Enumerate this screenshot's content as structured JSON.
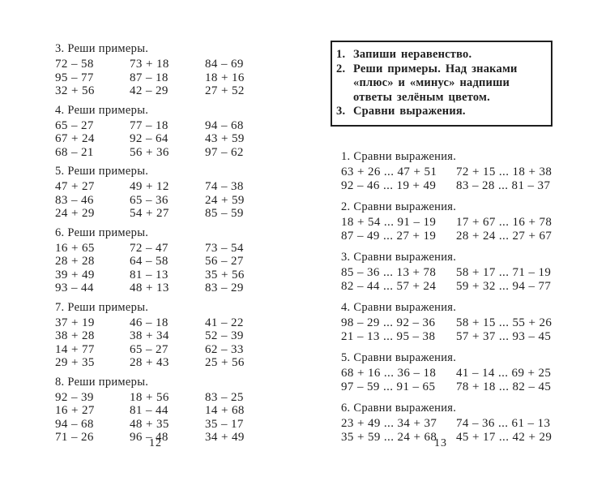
{
  "colors": {
    "background": "#ffffff",
    "text": "#1e1e1e",
    "box_border": "#1e1e1e"
  },
  "left_page": {
    "page_number": "12",
    "exercises": [
      {
        "title": "3. Реши примеры.",
        "rows": [
          [
            "72 – 58",
            "73 + 18",
            "84 – 69"
          ],
          [
            "95 – 77",
            "87 – 18",
            "18 + 16"
          ],
          [
            "32 + 56",
            "42 – 29",
            "27 + 52"
          ]
        ]
      },
      {
        "title": "4. Реши примеры.",
        "rows": [
          [
            "65 – 27",
            "77 – 18",
            "94 – 68"
          ],
          [
            "67 + 24",
            "92 – 64",
            "43 + 59"
          ],
          [
            "68 – 21",
            "56 + 36",
            "97 – 62"
          ]
        ]
      },
      {
        "title": "5. Реши примеры.",
        "rows": [
          [
            "47 + 27",
            "49 + 12",
            "74 – 38"
          ],
          [
            "83 – 46",
            "65 – 36",
            "24 + 59"
          ],
          [
            "24 + 29",
            "54 + 27",
            "85 – 59"
          ]
        ]
      },
      {
        "title": "6. Реши примеры.",
        "rows": [
          [
            "16 + 65",
            "72 – 47",
            "73 – 54"
          ],
          [
            "28 + 28",
            "64 – 58",
            "56 – 27"
          ],
          [
            "39 + 49",
            "81 – 13",
            "35 + 56"
          ],
          [
            "93 – 44",
            "48 + 13",
            "83 – 29"
          ]
        ]
      },
      {
        "title": "7. Реши примеры.",
        "rows": [
          [
            "37 + 19",
            "46 – 18",
            "41 – 22"
          ],
          [
            "38 + 28",
            "38 + 34",
            "52 – 39"
          ],
          [
            "14 + 77",
            "65 – 27",
            "62 – 33"
          ],
          [
            "29 + 35",
            "28 + 43",
            "25 + 56"
          ]
        ]
      },
      {
        "title": "8. Реши примеры.",
        "rows": [
          [
            "92 – 39",
            "18 + 56",
            "83 – 25"
          ],
          [
            "16 + 27",
            "81 – 44",
            "14 + 68"
          ],
          [
            "94 – 68",
            "48 + 35",
            "35 – 17"
          ],
          [
            "71 – 26",
            "96 – 48",
            "34 + 49"
          ]
        ]
      }
    ]
  },
  "right_page": {
    "page_number": "13",
    "instruction_box": {
      "items": [
        {
          "num": "1.",
          "text": "Запиши неравенство."
        },
        {
          "num": "2.",
          "text": "Реши примеры. Над знаками «плюс» и «минус» надпиши ответы зелёным цветом."
        },
        {
          "num": "3.",
          "text": "Сравни выражения."
        }
      ]
    },
    "exercises": [
      {
        "title": "1. Сравни выражения.",
        "rows": [
          [
            "63 + 26 ... 47 + 51",
            "72 + 15 ... 18 + 38"
          ],
          [
            "92 – 46 ... 19 + 49",
            "83 – 28 ... 81 – 37"
          ]
        ]
      },
      {
        "title": "2. Сравни выражения.",
        "rows": [
          [
            "18 + 54 ... 91 – 19",
            "17 + 67 ... 16 + 78"
          ],
          [
            "87 – 49 ... 27 + 19",
            "28 + 24 ... 27 + 67"
          ]
        ]
      },
      {
        "title": "3. Сравни выражения.",
        "rows": [
          [
            "85 – 36 ... 13 + 78",
            "58 + 17 ... 71 – 19"
          ],
          [
            "82 – 44 ... 57 + 24",
            "59 + 32 ... 94 – 77"
          ]
        ]
      },
      {
        "title": "4. Сравни выражения.",
        "rows": [
          [
            "98 – 29 ... 92 – 36",
            "58 + 15 ... 55 + 26"
          ],
          [
            "21 – 13 ... 95 – 38",
            "57 + 37 ... 93 – 45"
          ]
        ]
      },
      {
        "title": "5. Сравни выражения.",
        "rows": [
          [
            "68 + 16 ... 36 – 18",
            "41 – 14 ... 69 + 25"
          ],
          [
            "97 – 59 ... 91 – 65",
            "78 + 18 ... 82 – 45"
          ]
        ]
      },
      {
        "title": "6. Сравни выражения.",
        "rows": [
          [
            "23 + 49 ... 34 + 37",
            "74 – 36 ... 61 – 13"
          ],
          [
            "35 + 59 ... 24 + 68",
            "45 + 17 ... 42 + 29"
          ]
        ]
      }
    ]
  }
}
